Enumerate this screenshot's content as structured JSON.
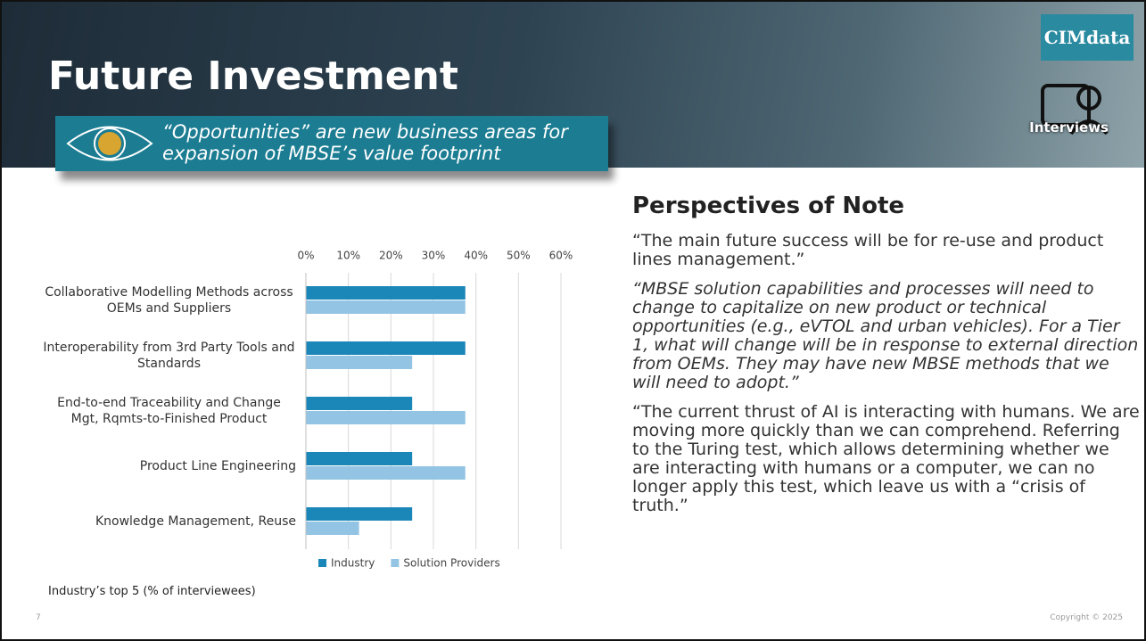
{
  "slide": {
    "title": "Future Investment",
    "callout": "“Opportunities” are new business areas for expansion of MBSE’s value footprint",
    "logo": "CIMdata",
    "badge": "Interviews",
    "caption": "Industry’s top 5 (% of interviewees)",
    "page_number": "7",
    "copyright": "Copyright © 2025"
  },
  "perspectives": {
    "heading": "Perspectives of Note",
    "quotes": [
      "“The main future success will be for re-use and product lines management.”",
      "“MBSE solution capabilities and processes will need to change to capitalize on new product or technical opportunities (e.g., eVTOL and urban vehicles). For a Tier 1, what will change will be in response to external direction from OEMs. They may have new MBSE methods that we will need to adopt.”",
      "“The current thrust of AI is interacting with humans. We are moving more quickly than we can comprehend. Referring to the Turing test, which allows determining whether we are interacting with humans or a computer, we can no longer apply this test, which leave us with a “crisis of truth.”"
    ]
  },
  "chart_data": {
    "type": "bar",
    "orientation": "horizontal",
    "categories": [
      "Collaborative Modelling Methods across OEMs and Suppliers",
      "Interoperability from 3rd Party Tools and Standards",
      "End-to-end Traceability and Change Mgt, Rqmts-to-Finished Product",
      "Product Line Engineering",
      "Knowledge Management, Reuse"
    ],
    "series": [
      {
        "name": "Industry",
        "color": "#1b86b8",
        "values": [
          37.5,
          37.5,
          25,
          25,
          25
        ]
      },
      {
        "name": "Solution Providers",
        "color": "#93c4e4",
        "values": [
          37.5,
          25,
          37.5,
          37.5,
          12.5
        ]
      }
    ],
    "xlim": [
      0,
      60
    ],
    "xticks": [
      {
        "value": 0,
        "label": "0%"
      },
      {
        "value": 10,
        "label": "10%"
      },
      {
        "value": 20,
        "label": "20%"
      },
      {
        "value": 30,
        "label": "30%"
      },
      {
        "value": 40,
        "label": "40%"
      },
      {
        "value": 50,
        "label": "50%"
      },
      {
        "value": 60,
        "label": "60%"
      }
    ],
    "grid": true,
    "legend": "bottom"
  }
}
